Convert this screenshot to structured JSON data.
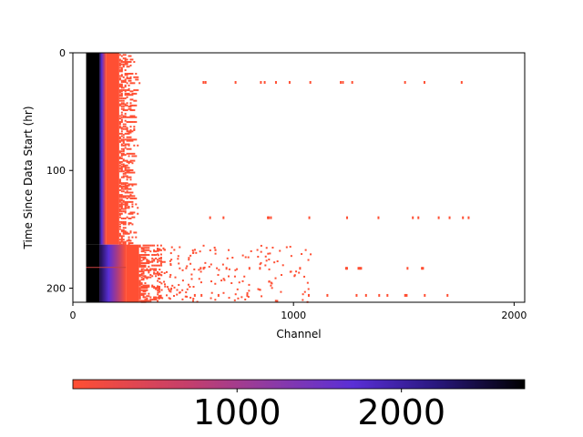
{
  "chart_data": {
    "type": "heatmap",
    "title": "",
    "xlabel": "Channel",
    "ylabel": "Time Since Data Start (hr)",
    "xlim": [
      0,
      2048
    ],
    "ylim": [
      212,
      0
    ],
    "x_ticks": [
      0,
      1000,
      2000
    ],
    "y_ticks": [
      0,
      100,
      200
    ],
    "grid": false,
    "colorbar": {
      "orientation": "horizontal",
      "placement": "bottom",
      "range": [
        1,
        2750
      ],
      "ticks": [
        1000,
        2000
      ],
      "colors": [
        "#ff4f33",
        "#7a35b8",
        "#5a2fd6",
        "#000000"
      ]
    },
    "description_points": {
      "saturated_band_channels": [
        60,
        120
      ],
      "top_segment": {
        "rows": [
          0,
          163
        ],
        "edge_channel": 150,
        "scatter_until": 300
      },
      "bottom_segment": {
        "rows": [
          163,
          212
        ],
        "edge_channel": 240,
        "scatter_until": 420
      },
      "outlier_rows": [
        24,
        139,
        182,
        205
      ]
    }
  },
  "axis_text": {
    "xlabel": "Channel",
    "ylabel": "Time Since Data Start (hr)",
    "x_tick_labels": [
      "0",
      "1000",
      "2000"
    ],
    "y_tick_labels": [
      "0",
      "100",
      "200"
    ],
    "cbar_tick_labels": [
      "1000",
      "2000"
    ]
  }
}
